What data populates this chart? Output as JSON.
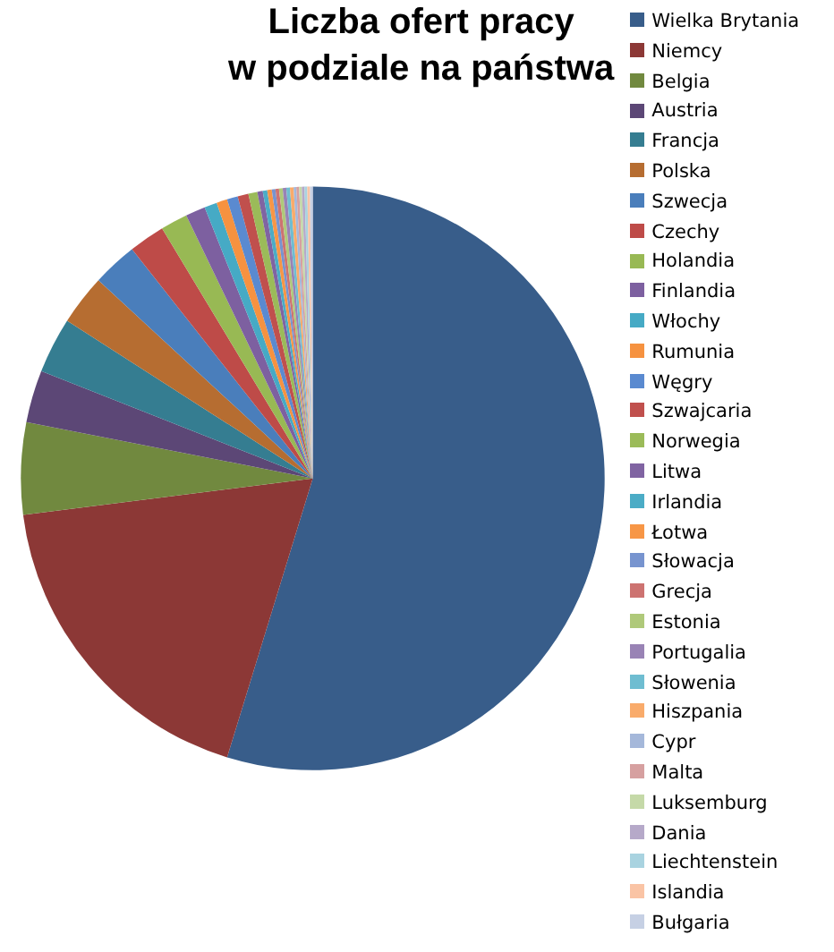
{
  "chart_data": {
    "type": "pie",
    "title": "Liczba ofert pracy\nw podziale na państwa",
    "categories": [
      "Wielka Brytania",
      "Niemcy",
      "Belgia",
      "Austria",
      "Francja",
      "Polska",
      "Szwecja",
      "Czechy",
      "Holandia",
      "Finlandia",
      "Włochy",
      "Rumunia",
      "Węgry",
      "Szwajcaria",
      "Norwegia",
      "Litwa",
      "Irlandia",
      "Łotwa",
      "Słowacja",
      "Grecja",
      "Estonia",
      "Portugalia",
      "Słowenia",
      "Hiszpania",
      "Cypr",
      "Malta",
      "Luksemburg",
      "Dania",
      "Liechtenstein",
      "Islandia",
      "Bułgaria"
    ],
    "values": [
      54.85,
      18.3,
      5.1,
      2.9,
      3.1,
      2.8,
      2.5,
      2.0,
      1.5,
      1.1,
      0.7,
      0.6,
      0.6,
      0.6,
      0.5,
      0.3,
      0.25,
      0.25,
      0.2,
      0.2,
      0.2,
      0.2,
      0.2,
      0.2,
      0.15,
      0.15,
      0.15,
      0.15,
      0.15,
      0.15,
      0.15
    ],
    "colors": [
      "#385d8a",
      "#8c3836",
      "#71893f",
      "#5c4776",
      "#357d91",
      "#b66d31",
      "#4a7ebb",
      "#be4b48",
      "#98b954",
      "#7d60a0",
      "#46aac5",
      "#f69240",
      "#5a8ad0",
      "#c0504d",
      "#9bbb59",
      "#8064a2",
      "#4bacc6",
      "#f79646",
      "#7794cf",
      "#cd7371",
      "#afc97a",
      "#9983b5",
      "#6fbdd1",
      "#f9ab6b",
      "#a5b8da",
      "#d6a0a0",
      "#c5d9a8",
      "#b6a9c9",
      "#a9d3e0",
      "#fac4a5",
      "#c6d0e4"
    ],
    "legend": "right"
  }
}
